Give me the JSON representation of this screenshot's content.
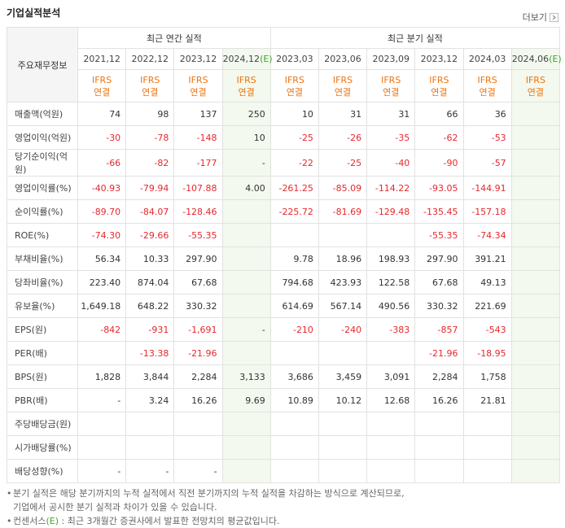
{
  "header": {
    "title": "기업실적분석",
    "more": "더보기"
  },
  "table": {
    "corner": "주요재무정보",
    "period_groups": [
      {
        "label": "최근 연간 실적",
        "periods": [
          {
            "date": "2021,12",
            "standard": "IFRS",
            "basis": "연결"
          },
          {
            "date": "2022,12",
            "standard": "IFRS",
            "basis": "연결"
          },
          {
            "date": "2023,12",
            "standard": "IFRS",
            "basis": "연결"
          },
          {
            "date": "2024,12",
            "mark": "(E)",
            "standard": "IFRS",
            "basis": "연결"
          }
        ]
      },
      {
        "label": "최근 분기 실적",
        "periods": [
          {
            "date": "2023,03",
            "standard": "IFRS",
            "basis": "연결"
          },
          {
            "date": "2023,06",
            "standard": "IFRS",
            "basis": "연결"
          },
          {
            "date": "2023,09",
            "standard": "IFRS",
            "basis": "연결"
          },
          {
            "date": "2023,12",
            "standard": "IFRS",
            "basis": "연결"
          },
          {
            "date": "2024,03",
            "standard": "IFRS",
            "basis": "연결"
          },
          {
            "date": "2024,06",
            "mark": "(E)",
            "standard": "IFRS",
            "basis": "연결"
          }
        ]
      }
    ],
    "groups": [
      [
        {
          "label": "매출액(억원)",
          "values": [
            "74",
            "98",
            "137",
            "250",
            "10",
            "31",
            "31",
            "66",
            "36",
            null
          ]
        },
        {
          "label": "영업이익(억원)",
          "values": [
            "-30",
            "-78",
            "-148",
            "10",
            "-25",
            "-26",
            "-35",
            "-62",
            "-53",
            null
          ]
        },
        {
          "label": "당기순이익(억원)",
          "values": [
            "-66",
            "-82",
            "-177",
            "-",
            "-22",
            "-25",
            "-40",
            "-90",
            "-57",
            null
          ]
        }
      ],
      [
        {
          "label": "영업이익률(%)",
          "values": [
            "-40.93",
            "-79.94",
            "-107.88",
            "4.00",
            "-261.25",
            "-85.09",
            "-114.22",
            "-93.05",
            "-144.91",
            null
          ]
        },
        {
          "label": "순이익률(%)",
          "values": [
            "-89.70",
            "-84.07",
            "-128.46",
            null,
            "-225.72",
            "-81.69",
            "-129.48",
            "-135.45",
            "-157.18",
            null
          ]
        },
        {
          "label": "ROE(%)",
          "values": [
            "-74.30",
            "-29.66",
            "-55.35",
            null,
            null,
            null,
            null,
            "-55.35",
            "-74.34",
            null
          ]
        }
      ],
      [
        {
          "label": "부채비율(%)",
          "values": [
            "56.34",
            "10.33",
            "297.90",
            null,
            "9.78",
            "18.96",
            "198.93",
            "297.90",
            "391.21",
            null
          ]
        },
        {
          "label": "당좌비율(%)",
          "values": [
            "223.40",
            "874.04",
            "67.68",
            null,
            "794.68",
            "423.93",
            "122.58",
            "67.68",
            "49.13",
            null
          ]
        },
        {
          "label": "유보율(%)",
          "values": [
            "1,649.18",
            "648.22",
            "330.32",
            null,
            "614.69",
            "567.14",
            "490.56",
            "330.32",
            "221.69",
            null
          ]
        }
      ],
      [
        {
          "label": "EPS(원)",
          "values": [
            "-842",
            "-931",
            "-1,691",
            "-",
            "-210",
            "-240",
            "-383",
            "-857",
            "-543",
            null
          ]
        },
        {
          "label": "PER(배)",
          "values": [
            null,
            "-13.38",
            "-21.96",
            null,
            null,
            null,
            null,
            "-21.96",
            "-18.95",
            null
          ]
        },
        {
          "label": "BPS(원)",
          "values": [
            "1,828",
            "3,844",
            "2,284",
            "3,133",
            "3,686",
            "3,459",
            "3,091",
            "2,284",
            "1,758",
            null
          ]
        },
        {
          "label": "PBR(배)",
          "values": [
            "-",
            "3.24",
            "16.26",
            "9.69",
            "10.89",
            "10.12",
            "12.68",
            "16.26",
            "21.81",
            null
          ]
        }
      ],
      [
        {
          "label": "주당배당금(원)",
          "values": [
            null,
            null,
            null,
            null,
            null,
            null,
            null,
            null,
            null,
            null
          ]
        },
        {
          "label": "시가배당률(%)",
          "values": [
            null,
            null,
            null,
            null,
            null,
            null,
            null,
            null,
            null,
            null
          ]
        },
        {
          "label": "배당성향(%)",
          "values": [
            "-",
            "-",
            "-",
            null,
            null,
            null,
            null,
            null,
            null,
            null
          ]
        }
      ]
    ]
  },
  "notes": {
    "quarterly": [
      "분기 실적은 해당 분기까지의 누적 실적에서 직전 분기까지의 누적 실적을 차감하는 방식으로 계산되므로,",
      "기업에서 공시한 분기 실적과 차이가 있을 수 있습니다."
    ],
    "consensus": {
      "term": "컨센서스",
      "mark": "(E)",
      "text": ": 최근 3개월간 증권사에서 발표한 전망치의 평균값입니다."
    }
  }
}
